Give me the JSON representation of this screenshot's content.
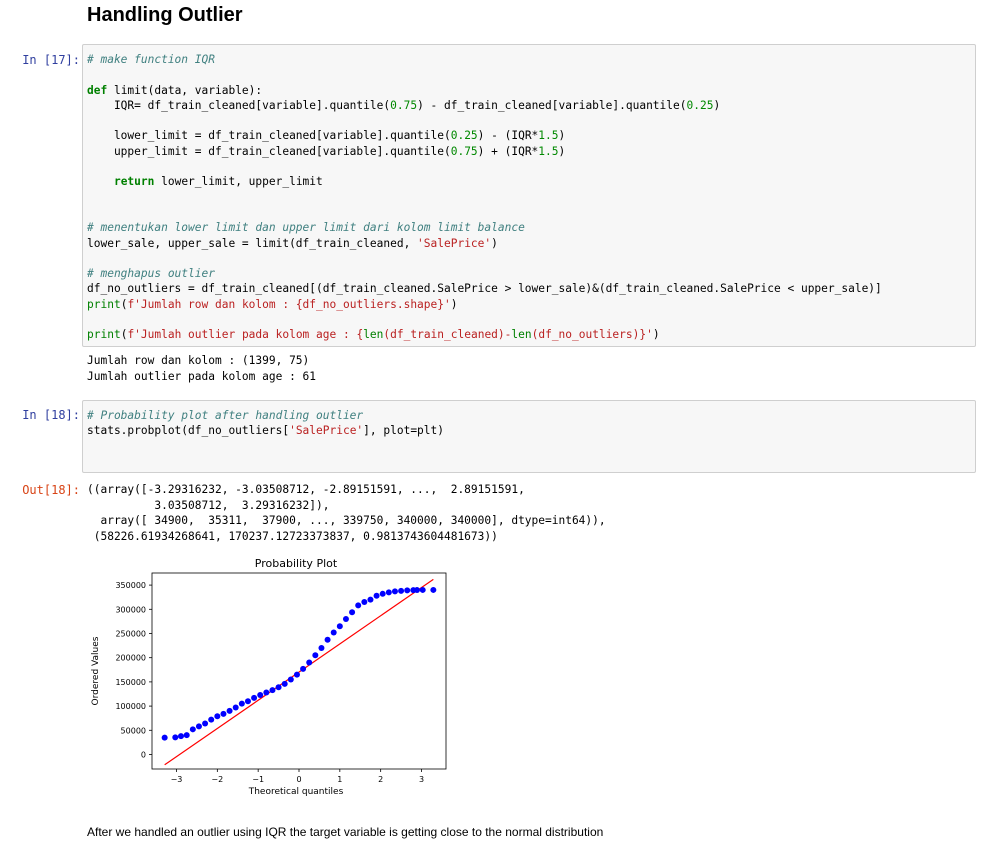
{
  "heading": "Handling Outlier",
  "cells": [
    {
      "prompt": "In [17]:",
      "lines": [
        "# make function IQR",
        "",
        "def limit(data, variable):",
        "    IQR= df_train_cleaned[variable].quantile(0.75) - df_train_cleaned[variable].quantile(0.25)",
        "",
        "    lower_limit = df_train_cleaned[variable].quantile(0.25) - (IQR*1.5)",
        "    upper_limit = df_train_cleaned[variable].quantile(0.75) + (IQR*1.5)",
        "",
        "    return lower_limit, upper_limit",
        "",
        "",
        "# menentukan lower limit dan upper limit dari kolom limit balance",
        "lower_sale, upper_sale = limit(df_train_cleaned, 'SalePrice')",
        "",
        "# menghapus outlier",
        "df_no_outliers = df_train_cleaned[(df_train_cleaned.SalePrice > lower_sale)&(df_train_cleaned.SalePrice < upper_sale)]",
        "print(f'Jumlah row dan kolom : {df_no_outliers.shape}')",
        "",
        "print(f'Jumlah outlier pada kolom age : {len(df_train_cleaned)-len(df_no_outliers)}')"
      ],
      "output": [
        "Jumlah row dan kolom : (1399, 75)",
        "Jumlah outlier pada kolom age : 61"
      ]
    },
    {
      "prompt": "In [18]:",
      "lines": [
        "# Probability plot after handling outlier",
        "stats.probplot(df_no_outliers['SalePrice'], plot=plt)"
      ],
      "out_prompt": "Out[18]:",
      "output": [
        "((array([-3.29316232, -3.03508712, -2.89151591, ...,  2.89151591,",
        "          3.03508712,  3.29316232]),",
        "  array([ 34900,  35311,  37900, ..., 339750, 340000, 340000], dtype=int64)),",
        " (58226.61934268641, 170237.12723373837, 0.9813743604481673))"
      ]
    }
  ],
  "chart_data": {
    "type": "scatter",
    "title": "Probability Plot",
    "xlabel": "Theoretical quantiles",
    "ylabel": "Ordered Values",
    "xticks": [
      -3,
      -2,
      -1,
      0,
      1,
      2,
      3
    ],
    "yticks": [
      0,
      50000,
      100000,
      150000,
      200000,
      250000,
      300000,
      350000
    ],
    "ytick_labels": [
      "0",
      "50000",
      "100000",
      "150000",
      "200000",
      "250000",
      "300000",
      "350000"
    ],
    "xlim": [
      -3.6,
      3.6
    ],
    "ylim": [
      -30000,
      375000
    ],
    "point_color": "#0000ff",
    "line_color": "#ff0000",
    "fit": {
      "slope": 58226.61934268641,
      "intercept": 170237.12723373837
    },
    "x": [
      -3.29,
      -3.03,
      -2.89,
      -2.75,
      -2.6,
      -2.45,
      -2.3,
      -2.15,
      -2.0,
      -1.85,
      -1.7,
      -1.55,
      -1.4,
      -1.25,
      -1.1,
      -0.95,
      -0.8,
      -0.65,
      -0.5,
      -0.35,
      -0.2,
      -0.05,
      0.1,
      0.25,
      0.4,
      0.55,
      0.7,
      0.85,
      1.0,
      1.15,
      1.3,
      1.45,
      1.6,
      1.75,
      1.9,
      2.05,
      2.2,
      2.35,
      2.5,
      2.65,
      2.8,
      2.89,
      3.03,
      3.29
    ],
    "y": [
      34900,
      35311,
      37900,
      40000,
      52000,
      58000,
      64000,
      72000,
      79000,
      84000,
      90000,
      97000,
      105000,
      110000,
      117000,
      123000,
      128000,
      133000,
      139000,
      146000,
      155000,
      165000,
      177000,
      190000,
      205000,
      220000,
      237000,
      252000,
      265000,
      280000,
      294000,
      308000,
      315000,
      320000,
      328000,
      332000,
      335000,
      337000,
      338000,
      339000,
      339500,
      339750,
      340000,
      340000
    ]
  },
  "markdown": "After we handled an outlier using IQR the target variable is getting close to the normal distribution"
}
